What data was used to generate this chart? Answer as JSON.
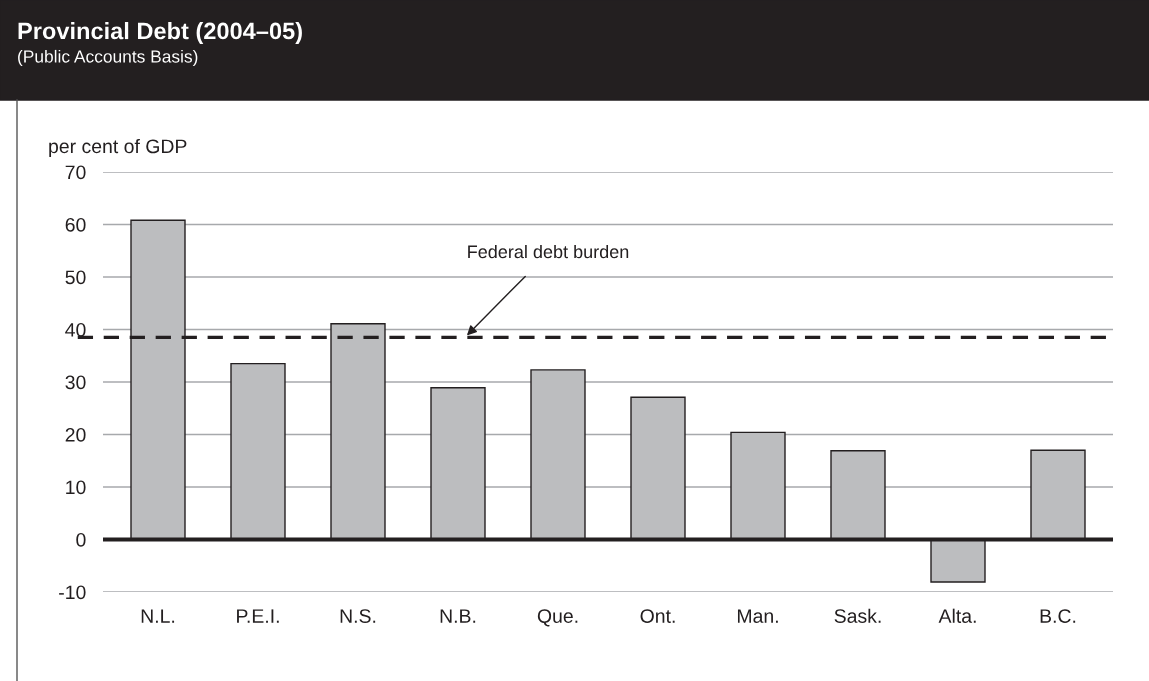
{
  "chart_data": {
    "type": "bar",
    "title": "Provincial Debt (2004–05)",
    "subtitle": "(Public Accounts Basis)",
    "ylabel": "per cent of GDP",
    "categories": [
      "N.L.",
      "P.E.I.",
      "N.S.",
      "N.B.",
      "Que.",
      "Ont.",
      "Man.",
      "Sask.",
      "Alta.",
      "B.C."
    ],
    "values": [
      60.8,
      33.5,
      41.1,
      28.9,
      32.3,
      27.1,
      20.4,
      16.9,
      -8.1,
      17.0
    ],
    "color": "#bcbdbf",
    "ylim": [
      -10,
      70
    ],
    "yticks": [
      -10,
      0,
      10,
      20,
      30,
      40,
      50,
      60,
      70
    ],
    "grid": "y",
    "ref_lines": [
      {
        "axis": "y",
        "value": 38.5,
        "label": "Federal debt burden",
        "color": "#231f20",
        "line_style": "dashed"
      }
    ]
  }
}
